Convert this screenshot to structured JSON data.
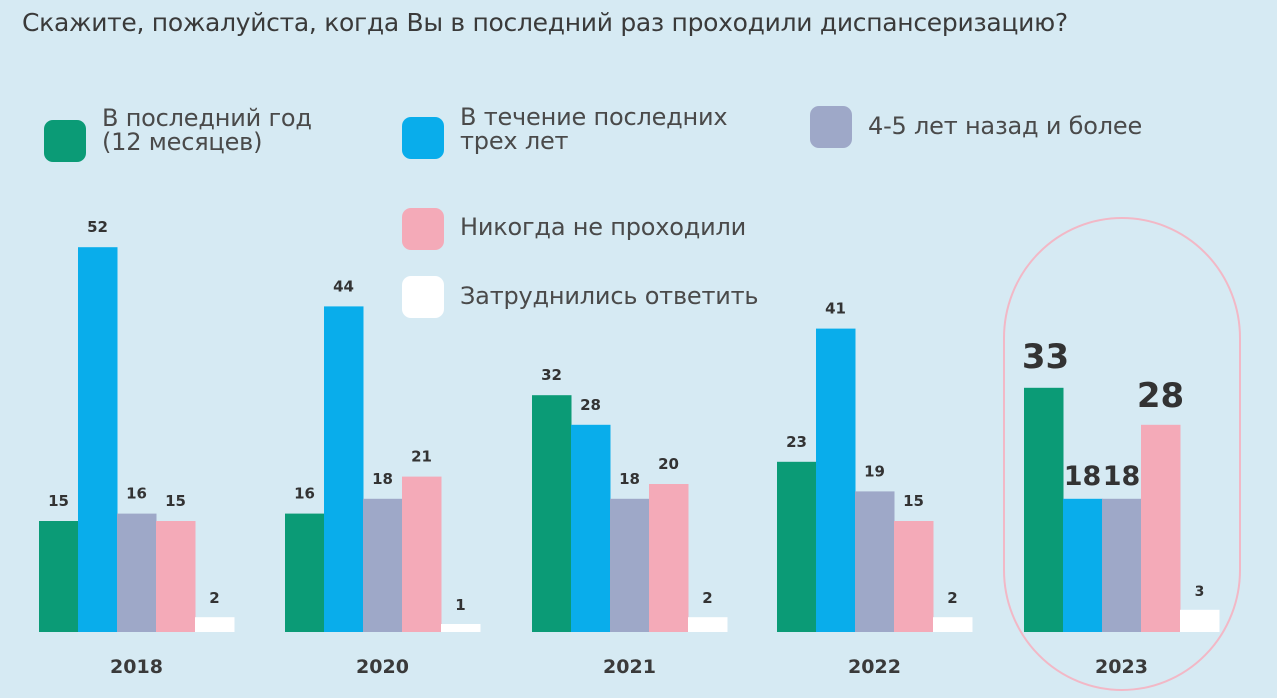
{
  "title": "Скажите, пожалуйста, когда Вы в последний раз проходили диспансеризацию?",
  "colors": {
    "last_year": "#0b9b76",
    "three_years": "#09adeb",
    "four_five": "#9ea8c8",
    "never": "#f4aab8",
    "hard": "#ffffff",
    "highlight": "#f2b8c6",
    "background": "#d6eaf3"
  },
  "legend": {
    "last_year": "В последний год\n(12 месяцев)",
    "three_years": "В течение последних\nтрех лет",
    "four_five": "4-5 лет назад и более",
    "never": "Никогда не проходили",
    "hard": "Затруднились ответить"
  },
  "chart_data": {
    "type": "bar",
    "categories": [
      "2018",
      "2020",
      "2021",
      "2022",
      "2023"
    ],
    "highlighted_category": "2023",
    "series": [
      {
        "name": "В последний год (12 месяцев)",
        "values": [
          15,
          16,
          32,
          23,
          33
        ]
      },
      {
        "name": "В течение последних трех лет",
        "values": [
          52,
          44,
          28,
          41,
          18
        ]
      },
      {
        "name": "4-5 лет назад и более",
        "values": [
          16,
          18,
          18,
          19,
          18
        ]
      },
      {
        "name": "Никогда не проходили",
        "values": [
          15,
          21,
          20,
          15,
          28
        ]
      },
      {
        "name": "Затруднились ответить",
        "values": [
          2,
          1,
          2,
          2,
          3
        ]
      }
    ]
  }
}
